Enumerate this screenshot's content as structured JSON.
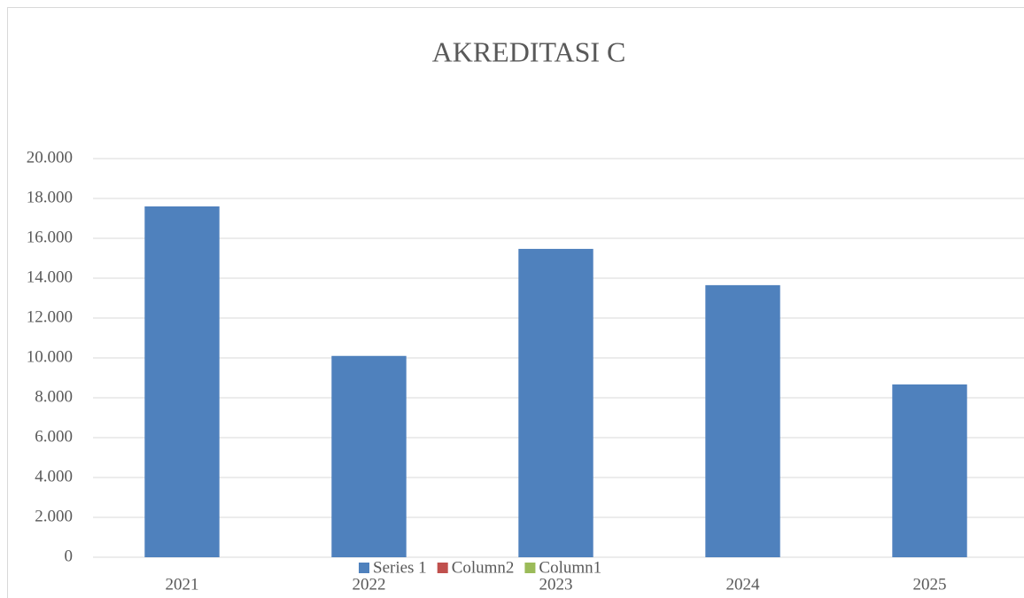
{
  "chart_data": {
    "type": "bar",
    "title": "AKREDITASI C",
    "categories": [
      "2021",
      "2022",
      "2023",
      "2024",
      "2025"
    ],
    "series": [
      {
        "name": "Series 1",
        "color": "#4f81bd",
        "values": [
          17600,
          10100,
          15470,
          13650,
          8670
        ]
      },
      {
        "name": "Column2",
        "color": "#c0504d",
        "values": [
          null,
          null,
          null,
          null,
          null
        ]
      },
      {
        "name": "Column1",
        "color": "#9bbb59",
        "values": [
          null,
          null,
          null,
          null,
          null
        ]
      }
    ],
    "ylim": [
      0,
      20000
    ],
    "yticks": [
      0,
      {
        "value": 2000,
        "label": "2.000"
      },
      {
        "value": 4000,
        "label": "4.000"
      },
      {
        "value": 6000,
        "label": "6.000"
      },
      {
        "value": 8000,
        "label": "8.000"
      },
      {
        "value": 10000,
        "label": "10.000"
      },
      {
        "value": 12000,
        "label": "12.000"
      },
      {
        "value": 14000,
        "label": "14.000"
      },
      {
        "value": 16000,
        "label": "16.000"
      },
      {
        "value": 18000,
        "label": "18.000"
      },
      {
        "value": 20000,
        "label": "20.000"
      }
    ],
    "grid": true,
    "legend": "bottom"
  }
}
